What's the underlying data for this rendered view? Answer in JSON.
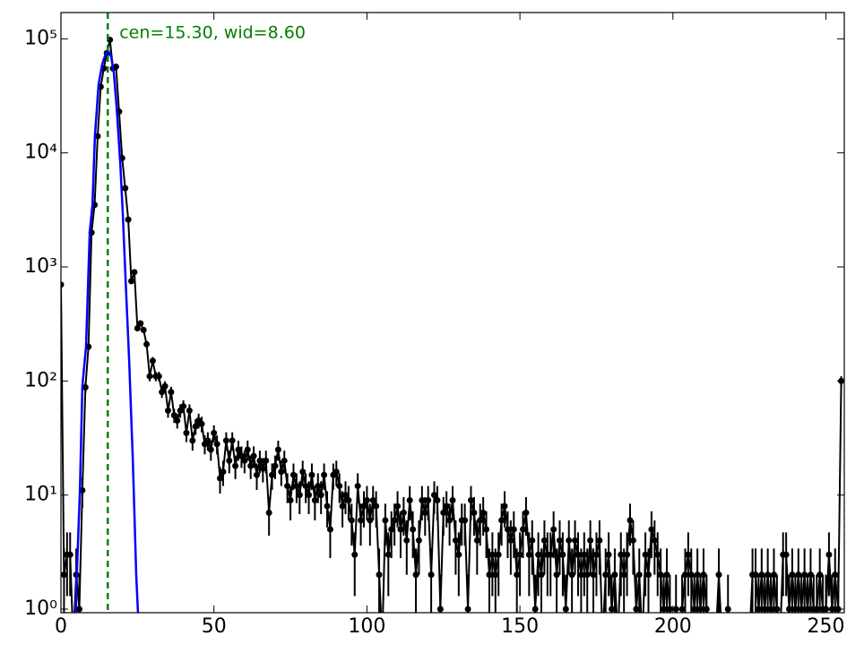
{
  "chart_data": {
    "type": "line",
    "annotation": "cen=15.30, wid=8.60",
    "annotation_color": "#008000",
    "vline_x": 15.3,
    "vline_color": "#008000",
    "log_y": true,
    "xlim": [
      0,
      256
    ],
    "ylim": [
      0.93,
      170000
    ],
    "xticks": [
      0,
      50,
      100,
      150,
      200,
      250
    ],
    "yticks": [
      {
        "value": 1,
        "label": "10⁰"
      },
      {
        "value": 10,
        "label": "10¹"
      },
      {
        "value": 100,
        "label": "10²"
      },
      {
        "value": 1000,
        "label": "10³"
      },
      {
        "value": 10000,
        "label": "10⁴"
      },
      {
        "value": 100000,
        "label": "10⁵"
      }
    ],
    "series": [
      {
        "color": "#000000",
        "marker": true,
        "x": [
          0,
          1,
          2,
          3,
          4,
          5,
          6,
          7,
          8,
          9,
          10,
          11,
          12,
          13,
          14,
          15,
          16,
          17,
          18,
          19,
          20,
          21,
          22,
          23,
          24,
          25,
          26,
          27,
          28,
          29,
          30,
          31,
          32,
          33,
          34,
          35,
          36,
          37,
          38,
          39,
          40,
          41,
          42,
          43,
          44,
          45,
          46,
          47,
          48,
          49,
          50,
          51,
          52,
          53,
          54,
          55,
          56,
          57,
          58,
          59,
          60,
          61,
          62,
          63,
          64,
          65,
          66,
          67,
          68,
          69,
          70,
          71,
          72,
          73,
          74,
          75,
          76,
          77,
          78,
          79,
          80,
          81,
          82,
          83,
          84,
          85,
          86,
          87,
          88,
          89,
          90,
          91,
          92,
          93,
          94,
          95,
          96,
          97,
          98,
          99,
          100,
          101,
          102,
          103,
          104,
          105,
          106,
          107,
          108,
          109,
          110,
          111,
          112,
          113,
          114,
          115,
          116,
          117,
          118,
          119,
          120,
          121,
          122,
          123,
          124,
          125,
          126,
          127,
          128,
          129,
          130,
          131,
          132,
          133,
          134,
          135,
          136,
          137,
          138,
          139,
          140,
          141,
          142,
          143,
          144,
          145,
          146,
          147,
          148,
          149,
          150,
          151,
          152,
          153,
          154,
          155,
          156,
          157,
          158,
          159,
          160,
          161,
          162,
          163,
          164,
          165,
          166,
          167,
          168,
          169,
          170,
          171,
          172,
          173,
          174,
          175,
          176,
          177,
          178,
          179,
          180,
          181,
          182,
          183,
          184,
          185,
          186,
          187,
          188,
          189,
          190,
          191,
          192,
          193,
          194,
          195,
          196,
          197,
          198,
          199,
          200,
          201,
          202,
          203,
          204,
          205,
          206,
          207,
          208,
          209,
          210,
          211,
          212,
          213,
          214,
          215,
          216,
          217,
          218,
          219,
          220,
          221,
          222,
          223,
          224,
          225,
          226,
          227,
          228,
          229,
          230,
          231,
          232,
          233,
          234,
          235,
          236,
          237,
          238,
          239,
          240,
          241,
          242,
          243,
          244,
          245,
          246,
          247,
          248,
          249,
          250,
          251,
          252,
          253,
          254,
          255
        ],
        "values": [
          700,
          2,
          3,
          3,
          0,
          2,
          1,
          11,
          88,
          200,
          2000,
          3500,
          14000,
          38000,
          55000,
          75000,
          98000,
          55000,
          57000,
          23000,
          9000,
          4900,
          2600,
          750,
          900,
          290,
          320,
          280,
          210,
          110,
          150,
          110,
          110,
          80,
          90,
          55,
          80,
          50,
          45,
          55,
          60,
          35,
          55,
          30,
          40,
          45,
          42,
          28,
          30,
          25,
          35,
          28,
          14,
          16,
          30,
          20,
          30,
          18,
          25,
          22,
          20,
          25,
          18,
          22,
          15,
          20,
          17,
          20,
          7,
          15,
          18,
          25,
          16,
          20,
          12,
          9,
          15,
          12,
          10,
          16,
          12,
          10,
          15,
          9,
          12,
          10,
          15,
          8,
          5,
          15,
          16,
          12,
          8,
          10,
          9,
          6,
          3,
          12,
          6,
          8,
          9,
          6,
          9,
          8,
          2,
          0,
          6,
          3,
          5,
          6,
          8,
          5,
          7,
          4,
          9,
          5,
          2,
          4,
          9,
          7,
          9,
          2,
          10,
          9,
          1,
          7,
          8,
          6,
          9,
          4,
          3,
          6,
          6,
          1,
          9,
          7,
          4,
          6,
          7,
          5,
          2,
          3,
          2,
          3,
          6,
          8,
          5,
          4,
          5,
          2,
          3,
          5,
          7,
          3,
          4,
          1,
          3,
          2,
          4,
          3,
          3,
          5,
          2,
          4,
          3,
          1,
          4,
          2,
          4,
          3,
          2,
          3,
          2,
          4,
          2,
          3,
          4,
          0,
          2,
          3,
          1,
          2,
          0,
          3,
          2,
          3,
          6,
          4,
          1,
          2,
          0,
          3,
          2,
          5,
          4,
          3,
          2,
          1,
          2,
          1,
          0,
          1,
          0,
          1,
          2,
          3,
          2,
          1,
          2,
          1,
          2,
          1,
          0,
          0,
          0,
          2,
          0,
          0,
          1,
          0,
          0,
          0,
          0,
          0,
          0,
          0,
          2,
          2,
          1,
          2,
          1,
          2,
          1,
          2,
          1,
          0,
          3,
          3,
          1,
          2,
          1,
          2,
          1,
          2,
          1,
          2,
          1,
          1,
          2,
          1,
          1,
          3,
          1,
          2,
          1,
          100
        ],
        "errors": [
          26.5,
          1.4,
          1.7,
          1.7,
          0,
          1.4,
          1,
          3.3,
          9.4,
          14.1,
          44.7,
          59.2,
          118.3,
          194.9,
          234.5,
          273.9,
          313,
          234.5,
          238.7,
          151.7,
          94.9,
          70,
          51,
          27.4,
          30,
          17,
          17.9,
          16.7,
          14.5,
          10.5,
          12.2,
          10.5,
          10.5,
          8.9,
          9.5,
          7.4,
          8.9,
          7.1,
          6.7,
          7.4,
          7.7,
          5.9,
          7.4,
          5.5,
          6.3,
          6.7,
          6.5,
          5.3,
          5.5,
          5,
          5.9,
          5.3,
          3.7,
          4,
          5.5,
          4.5,
          5.5,
          4.2,
          5,
          4.7,
          4.5,
          5,
          4.2,
          4.7,
          3.9,
          4.5,
          4.1,
          4.5,
          2.6,
          3.9,
          4.2,
          5,
          4,
          4.5,
          3.5,
          3,
          3.9,
          3.5,
          3.2,
          4,
          3.5,
          3.2,
          3.9,
          3,
          3.5,
          3.2,
          3.9,
          2.8,
          2.2,
          3.9,
          4,
          3.5,
          2.8,
          3.2,
          3,
          2.4,
          1.7,
          3.5,
          2.4,
          2.8,
          3,
          2.4,
          3,
          2.8,
          1.4,
          0,
          2.4,
          1.7,
          2.2,
          2.4,
          2.8,
          2.2,
          2.6,
          2,
          3,
          2.2,
          1.4,
          2,
          3,
          2.6,
          3,
          1.4,
          3.2,
          3,
          1,
          2.6,
          2.8,
          2.4,
          3,
          2,
          1.7,
          2.4,
          2.4,
          1,
          3,
          2.6,
          2,
          2.4,
          2.6,
          2.2,
          1.4,
          1.7,
          1.4,
          1.7,
          2.4,
          2.8,
          2.2,
          2,
          2.2,
          1.4,
          1.7,
          2.2,
          2.6,
          1.7,
          2,
          1,
          1.7,
          1.4,
          2,
          1.7,
          1.7,
          2.2,
          1.4,
          2,
          1.7,
          1,
          2,
          1.4,
          2,
          1.7,
          1.4,
          1.7,
          1.4,
          2,
          1.4,
          1.7,
          2,
          0,
          1.4,
          1.7,
          1,
          1.4,
          0,
          1.7,
          1.4,
          1.7,
          2.4,
          2,
          1,
          1.4,
          0,
          1.7,
          1.4,
          2.2,
          2,
          1.7,
          1.4,
          1,
          1.4,
          1,
          0,
          1,
          0,
          1,
          1.4,
          1.7,
          1.4,
          1,
          1.4,
          1,
          1.4,
          1,
          0,
          0,
          0,
          1.4,
          0,
          0,
          1,
          0,
          0,
          0,
          0,
          0,
          0,
          0,
          1.4,
          1.4,
          1,
          1.4,
          1,
          1.4,
          1,
          1.4,
          1,
          0,
          1.7,
          1.7,
          1,
          1.4,
          1,
          1.4,
          1,
          1.4,
          1,
          1.4,
          1,
          1,
          1.4,
          1,
          1,
          1.7,
          1,
          1.4,
          1,
          10
        ]
      },
      {
        "color": "#0000ff",
        "x": [
          4.7,
          6.2,
          7,
          8.2,
          9.4,
          10.3,
          11.1,
          12.3,
          13.5,
          14.7,
          15.5,
          16.4,
          17.3,
          18.2,
          19.4,
          20.2,
          21.1,
          22.3,
          23.5,
          24.6,
          25.2
        ],
        "values": [
          0.9,
          11,
          90,
          200,
          2000,
          3500,
          14000,
          40000,
          60000,
          75000,
          78000,
          70000,
          50000,
          25000,
          8000,
          3000,
          800,
          150,
          20,
          2,
          0.9
        ]
      }
    ]
  }
}
